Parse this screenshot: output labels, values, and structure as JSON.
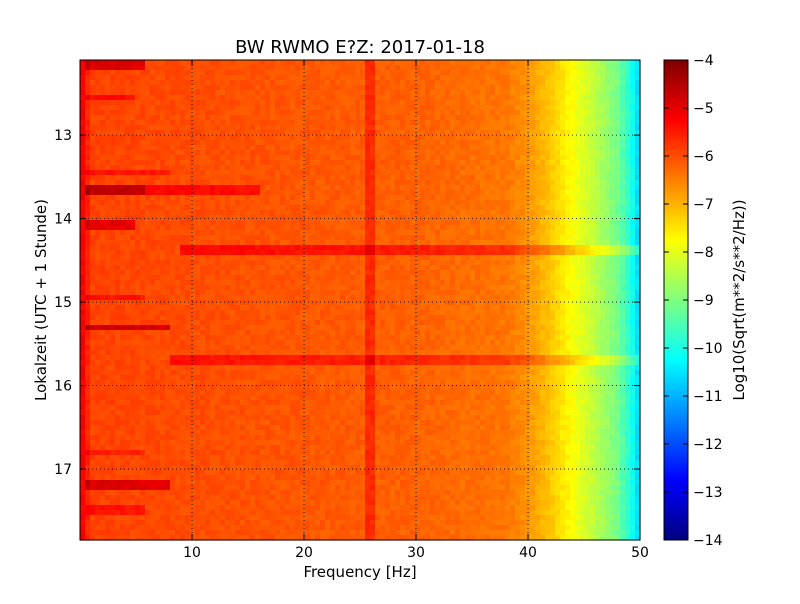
{
  "chart_data": {
    "type": "heatmap",
    "title": "BW RWMO E?Z: 2017-01-18",
    "xlabel": "Frequency [Hz]",
    "ylabel": "Lokalzeit (UTC + 1 Stunde)",
    "xlim": [
      0,
      50
    ],
    "ylim": [
      12.1,
      17.85
    ],
    "y_inverted": true,
    "x_ticks": [
      10,
      20,
      30,
      40,
      50
    ],
    "y_ticks": [
      13,
      14,
      15,
      16,
      17
    ],
    "grid": true,
    "colormap": "jet",
    "colorbar": {
      "label": "Log10(Sqrt(m**2/s**2/Hz))",
      "range": [
        -14,
        -4
      ],
      "ticks": [
        -4,
        -5,
        -6,
        -7,
        -8,
        -9,
        -10,
        -11,
        -12,
        -13,
        -14
      ]
    },
    "value_profile_by_frequency": [
      {
        "freq_hz": 0,
        "value": -5.0
      },
      {
        "freq_hz": 1,
        "value": -5.9
      },
      {
        "freq_hz": 30,
        "value": -6.2
      },
      {
        "freq_hz": 38,
        "value": -6.4
      },
      {
        "freq_hz": 40,
        "value": -6.7
      },
      {
        "freq_hz": 42,
        "value": -7.2
      },
      {
        "freq_hz": 44,
        "value": -7.8
      },
      {
        "freq_hz": 46,
        "value": -8.4
      },
      {
        "freq_hz": 48,
        "value": -9.1
      },
      {
        "freq_hz": 49.5,
        "value": -10.2
      },
      {
        "freq_hz": 50,
        "value": -10.8
      }
    ],
    "features": [
      {
        "kind": "vertical-line",
        "freq_hz": 26,
        "delta": 0.5
      },
      {
        "kind": "horizontal-band",
        "time": 12.15,
        "freq_from": 0.3,
        "freq_to": 6,
        "delta": 1.0
      },
      {
        "kind": "horizontal-band",
        "time": 12.55,
        "freq_from": 0.3,
        "freq_to": 5,
        "delta": 0.6
      },
      {
        "kind": "horizontal-band",
        "time": 13.45,
        "freq_from": 0.3,
        "freq_to": 8,
        "delta": 0.5
      },
      {
        "kind": "horizontal-band",
        "time": 13.67,
        "freq_from": 0.3,
        "freq_to": 6,
        "delta": 1.3
      },
      {
        "kind": "horizontal-band",
        "time": 13.67,
        "freq_from": 6,
        "freq_to": 16,
        "delta": 0.7
      },
      {
        "kind": "horizontal-band",
        "time": 14.1,
        "freq_from": 0.3,
        "freq_to": 5,
        "delta": 0.9
      },
      {
        "kind": "horizontal-band",
        "time": 14.36,
        "freq_from": 9,
        "freq_to": 50,
        "delta": 0.7
      },
      {
        "kind": "horizontal-band",
        "time": 14.95,
        "freq_from": 0.3,
        "freq_to": 6,
        "delta": 0.5
      },
      {
        "kind": "horizontal-band",
        "time": 15.3,
        "freq_from": 0.3,
        "freq_to": 8,
        "delta": 1.1
      },
      {
        "kind": "horizontal-band",
        "time": 15.68,
        "freq_from": 8,
        "freq_to": 50,
        "delta": 0.6
      },
      {
        "kind": "horizontal-band",
        "time": 16.8,
        "freq_from": 0.3,
        "freq_to": 6,
        "delta": 0.4
      },
      {
        "kind": "horizontal-band",
        "time": 17.17,
        "freq_from": 0.3,
        "freq_to": 8,
        "delta": 1.0
      },
      {
        "kind": "horizontal-band",
        "time": 17.5,
        "freq_from": 0.3,
        "freq_to": 6,
        "delta": 0.5
      }
    ]
  }
}
